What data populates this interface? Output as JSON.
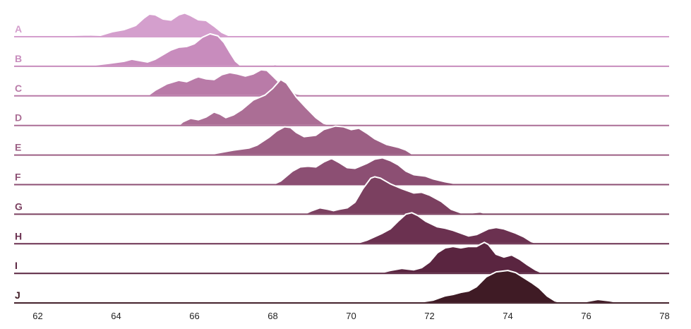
{
  "chart_data": {
    "type": "ridgeline",
    "title": "",
    "xlabel": "",
    "ylabel": "",
    "xlim": [
      61.4,
      78.0
    ],
    "xticks": [
      62,
      64,
      66,
      68,
      70,
      72,
      74,
      76,
      78
    ],
    "xtick_labels": [
      "62",
      "64",
      "66",
      "68",
      "70",
      "72",
      "74",
      "76",
      "78"
    ],
    "grid": false,
    "legend": "none",
    "series": [
      {
        "name": "A",
        "color": "#d49fcd",
        "points": [
          [
            62.6,
            0
          ],
          [
            62.9,
            0.04
          ],
          [
            63.3,
            0.05
          ],
          [
            63.6,
            0.04
          ],
          [
            63.9,
            0.14
          ],
          [
            64.2,
            0.2
          ],
          [
            64.5,
            0.32
          ],
          [
            64.7,
            0.52
          ],
          [
            64.85,
            0.64
          ],
          [
            65.0,
            0.62
          ],
          [
            65.2,
            0.5
          ],
          [
            65.4,
            0.47
          ],
          [
            65.6,
            0.62
          ],
          [
            65.75,
            0.67
          ],
          [
            65.9,
            0.6
          ],
          [
            66.1,
            0.48
          ],
          [
            66.3,
            0.46
          ],
          [
            66.5,
            0.3
          ],
          [
            66.7,
            0.12
          ],
          [
            66.9,
            0.02
          ],
          [
            67.1,
            0
          ]
        ]
      },
      {
        "name": "B",
        "color": "#c88cbd",
        "points": [
          [
            62.4,
            0
          ],
          [
            62.8,
            0.01
          ],
          [
            63.4,
            0.03
          ],
          [
            63.8,
            0.08
          ],
          [
            64.2,
            0.14
          ],
          [
            64.4,
            0.2
          ],
          [
            64.6,
            0.16
          ],
          [
            64.8,
            0.12
          ],
          [
            65.0,
            0.2
          ],
          [
            65.2,
            0.33
          ],
          [
            65.4,
            0.46
          ],
          [
            65.6,
            0.54
          ],
          [
            65.8,
            0.56
          ],
          [
            66.0,
            0.64
          ],
          [
            66.2,
            0.82
          ],
          [
            66.4,
            0.92
          ],
          [
            66.6,
            0.86
          ],
          [
            66.75,
            0.68
          ],
          [
            66.9,
            0.4
          ],
          [
            67.05,
            0.14
          ],
          [
            67.2,
            0
          ],
          [
            67.9,
            0
          ],
          [
            68.05,
            0.05
          ],
          [
            68.2,
            0.02
          ],
          [
            68.4,
            0
          ]
        ]
      },
      {
        "name": "C",
        "color": "#b97ba8",
        "points": [
          [
            64.8,
            0
          ],
          [
            65.0,
            0.16
          ],
          [
            65.3,
            0.34
          ],
          [
            65.6,
            0.44
          ],
          [
            65.8,
            0.4
          ],
          [
            66.0,
            0.5
          ],
          [
            66.1,
            0.54
          ],
          [
            66.3,
            0.48
          ],
          [
            66.5,
            0.46
          ],
          [
            66.7,
            0.6
          ],
          [
            66.9,
            0.66
          ],
          [
            67.1,
            0.62
          ],
          [
            67.3,
            0.56
          ],
          [
            67.5,
            0.62
          ],
          [
            67.7,
            0.74
          ],
          [
            67.85,
            0.72
          ],
          [
            68.0,
            0.56
          ],
          [
            68.2,
            0.34
          ],
          [
            68.4,
            0.2
          ],
          [
            68.6,
            0.06
          ],
          [
            68.8,
            0.02
          ],
          [
            69.1,
            0.03
          ],
          [
            69.4,
            0
          ]
        ]
      },
      {
        "name": "D",
        "color": "#ab6e95",
        "points": [
          [
            65.6,
            0
          ],
          [
            65.7,
            0.1
          ],
          [
            65.9,
            0.2
          ],
          [
            66.1,
            0.16
          ],
          [
            66.3,
            0.24
          ],
          [
            66.5,
            0.38
          ],
          [
            66.65,
            0.32
          ],
          [
            66.8,
            0.22
          ],
          [
            67.0,
            0.3
          ],
          [
            67.2,
            0.44
          ],
          [
            67.5,
            0.72
          ],
          [
            67.8,
            0.86
          ],
          [
            68.0,
            1.05
          ],
          [
            68.2,
            1.3
          ],
          [
            68.35,
            1.2
          ],
          [
            68.6,
            0.8
          ],
          [
            68.85,
            0.5
          ],
          [
            69.1,
            0.22
          ],
          [
            69.3,
            0.06
          ],
          [
            69.5,
            0
          ],
          [
            69.8,
            0
          ],
          [
            70.0,
            0.04
          ],
          [
            70.2,
            0
          ]
        ]
      },
      {
        "name": "E",
        "color": "#9c5f84",
        "points": [
          [
            66.3,
            0
          ],
          [
            66.6,
            0.06
          ],
          [
            67.0,
            0.14
          ],
          [
            67.4,
            0.2
          ],
          [
            67.6,
            0.28
          ],
          [
            67.9,
            0.5
          ],
          [
            68.1,
            0.68
          ],
          [
            68.3,
            0.8
          ],
          [
            68.45,
            0.78
          ],
          [
            68.6,
            0.64
          ],
          [
            68.8,
            0.52
          ],
          [
            69.1,
            0.56
          ],
          [
            69.3,
            0.72
          ],
          [
            69.6,
            0.82
          ],
          [
            69.8,
            0.8
          ],
          [
            70.0,
            0.72
          ],
          [
            70.2,
            0.76
          ],
          [
            70.4,
            0.62
          ],
          [
            70.6,
            0.46
          ],
          [
            70.9,
            0.3
          ],
          [
            71.2,
            0.22
          ],
          [
            71.4,
            0.14
          ],
          [
            71.6,
            0
          ]
        ]
      },
      {
        "name": "F",
        "color": "#8c4f73",
        "points": [
          [
            68.0,
            0
          ],
          [
            68.2,
            0.1
          ],
          [
            68.5,
            0.38
          ],
          [
            68.7,
            0.5
          ],
          [
            68.9,
            0.52
          ],
          [
            69.1,
            0.5
          ],
          [
            69.3,
            0.64
          ],
          [
            69.5,
            0.74
          ],
          [
            69.7,
            0.62
          ],
          [
            69.9,
            0.48
          ],
          [
            70.1,
            0.46
          ],
          [
            70.4,
            0.6
          ],
          [
            70.6,
            0.72
          ],
          [
            70.8,
            0.76
          ],
          [
            71.0,
            0.68
          ],
          [
            71.2,
            0.56
          ],
          [
            71.4,
            0.38
          ],
          [
            71.6,
            0.28
          ],
          [
            71.9,
            0.24
          ],
          [
            72.1,
            0.16
          ],
          [
            72.4,
            0.08
          ],
          [
            72.7,
            0.02
          ],
          [
            73.0,
            0
          ]
        ]
      },
      {
        "name": "G",
        "color": "#7b4060",
        "points": [
          [
            68.8,
            0
          ],
          [
            69.0,
            0.1
          ],
          [
            69.2,
            0.18
          ],
          [
            69.4,
            0.14
          ],
          [
            69.55,
            0.1
          ],
          [
            69.7,
            0.14
          ],
          [
            69.9,
            0.18
          ],
          [
            70.1,
            0.34
          ],
          [
            70.3,
            0.72
          ],
          [
            70.5,
            1.02
          ],
          [
            70.6,
            1.06
          ],
          [
            70.75,
            1.02
          ],
          [
            71.0,
            0.86
          ],
          [
            71.3,
            0.72
          ],
          [
            71.6,
            0.6
          ],
          [
            71.8,
            0.62
          ],
          [
            72.0,
            0.54
          ],
          [
            72.3,
            0.36
          ],
          [
            72.55,
            0.14
          ],
          [
            72.8,
            0.04
          ],
          [
            73.1,
            0.04
          ],
          [
            73.3,
            0.06
          ],
          [
            73.5,
            0
          ]
        ]
      },
      {
        "name": "H",
        "color": "#6b3150",
        "points": [
          [
            70.1,
            0
          ],
          [
            70.4,
            0.1
          ],
          [
            70.8,
            0.3
          ],
          [
            71.0,
            0.42
          ],
          [
            71.2,
            0.64
          ],
          [
            71.4,
            0.84
          ],
          [
            71.55,
            0.88
          ],
          [
            71.7,
            0.8
          ],
          [
            71.9,
            0.64
          ],
          [
            72.2,
            0.48
          ],
          [
            72.4,
            0.44
          ],
          [
            72.6,
            0.38
          ],
          [
            72.8,
            0.3
          ],
          [
            73.0,
            0.22
          ],
          [
            73.2,
            0.26
          ],
          [
            73.5,
            0.42
          ],
          [
            73.7,
            0.46
          ],
          [
            73.9,
            0.42
          ],
          [
            74.2,
            0.3
          ],
          [
            74.4,
            0.2
          ],
          [
            74.6,
            0.06
          ],
          [
            74.8,
            0
          ]
        ]
      },
      {
        "name": "I",
        "color": "#5a2540",
        "points": [
          [
            70.7,
            0
          ],
          [
            71.0,
            0.08
          ],
          [
            71.3,
            0.14
          ],
          [
            71.6,
            0.1
          ],
          [
            71.8,
            0.16
          ],
          [
            72.0,
            0.32
          ],
          [
            72.2,
            0.58
          ],
          [
            72.4,
            0.72
          ],
          [
            72.6,
            0.76
          ],
          [
            72.8,
            0.72
          ],
          [
            73.0,
            0.76
          ],
          [
            73.2,
            0.76
          ],
          [
            73.4,
            0.88
          ],
          [
            73.5,
            0.82
          ],
          [
            73.7,
            0.54
          ],
          [
            73.9,
            0.46
          ],
          [
            74.1,
            0.52
          ],
          [
            74.3,
            0.4
          ],
          [
            74.5,
            0.24
          ],
          [
            74.7,
            0.1
          ],
          [
            74.9,
            0
          ]
        ]
      },
      {
        "name": "J",
        "color": "#3f1b25",
        "points": [
          [
            71.4,
            0
          ],
          [
            71.8,
            0.03
          ],
          [
            72.1,
            0.08
          ],
          [
            72.4,
            0.2
          ],
          [
            72.6,
            0.24
          ],
          [
            72.8,
            0.3
          ],
          [
            73.0,
            0.34
          ],
          [
            73.2,
            0.46
          ],
          [
            73.45,
            0.74
          ],
          [
            73.7,
            0.88
          ],
          [
            74.0,
            0.92
          ],
          [
            74.2,
            0.86
          ],
          [
            74.4,
            0.72
          ],
          [
            74.6,
            0.58
          ],
          [
            74.8,
            0.42
          ],
          [
            75.0,
            0.2
          ],
          [
            75.2,
            0.06
          ],
          [
            75.4,
            0
          ],
          [
            75.8,
            0
          ],
          [
            76.0,
            0.04
          ],
          [
            76.3,
            0.1
          ],
          [
            76.6,
            0.06
          ],
          [
            76.9,
            0
          ]
        ]
      }
    ]
  }
}
